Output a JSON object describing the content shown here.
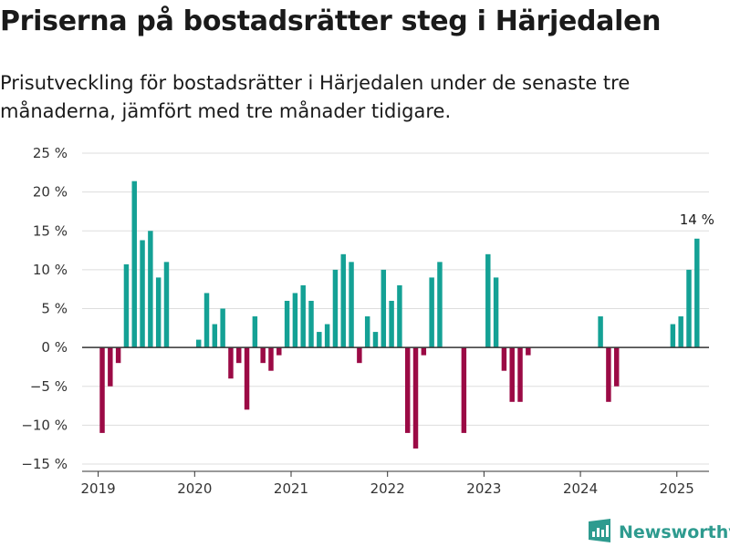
{
  "title": "Priserna på bostadsrätter steg i Härjedalen",
  "subtitle": "Prisutveckling för bostadsrätter i Härjedalen under de senaste tre månaderna, jämfört med tre månader tidigare.",
  "brand": {
    "name": "Newsworthy",
    "icon": "newsworthy-logo-icon",
    "color": "#2e9b8f"
  },
  "colors": {
    "positive": "#14a195",
    "negative": "#9b0a45",
    "grid": "#dddddd",
    "zero_line": "#333333"
  },
  "chart_data": {
    "type": "bar",
    "title": "Priserna på bostadsrätter steg i Härjedalen",
    "subtitle": "Prisutveckling för bostadsrätter i Härjedalen under de senaste tre månaderna, jämfört med tre månader tidigare.",
    "xlabel": "",
    "ylabel": "",
    "ylim": [
      -15,
      25
    ],
    "yticks": [
      25,
      20,
      15,
      10,
      5,
      0,
      -5,
      -10,
      -15
    ],
    "ytick_labels": [
      "25 %",
      "20 %",
      "15 %",
      "10 %",
      "5 %",
      "0 %",
      "−5 %",
      "−10 %",
      "−15 %"
    ],
    "x_range": [
      "2018-11",
      "2025-05"
    ],
    "xticks": [
      "2019",
      "2020",
      "2021",
      "2022",
      "2023",
      "2024",
      "2025"
    ],
    "grid": true,
    "legend": "none",
    "annotations": [
      {
        "period": "2025-03",
        "text": "14 %"
      }
    ],
    "bars": [
      {
        "period": "2019-01",
        "value": -11
      },
      {
        "period": "2019-02",
        "value": -5
      },
      {
        "period": "2019-03",
        "value": -2
      },
      {
        "period": "2019-04",
        "value": 10.7
      },
      {
        "period": "2019-05",
        "value": 21.4
      },
      {
        "period": "2019-06",
        "value": 13.8
      },
      {
        "period": "2019-07",
        "value": 15
      },
      {
        "period": "2019-08",
        "value": 9
      },
      {
        "period": "2019-09",
        "value": 11
      },
      {
        "period": "2020-01",
        "value": 1
      },
      {
        "period": "2020-02",
        "value": 7
      },
      {
        "period": "2020-03",
        "value": 3
      },
      {
        "period": "2020-04",
        "value": 5
      },
      {
        "period": "2020-05",
        "value": -4
      },
      {
        "period": "2020-06",
        "value": -2
      },
      {
        "period": "2020-07",
        "value": -8
      },
      {
        "period": "2020-08",
        "value": 4
      },
      {
        "period": "2020-09",
        "value": -2
      },
      {
        "period": "2020-10",
        "value": -3
      },
      {
        "period": "2020-11",
        "value": -1
      },
      {
        "period": "2020-12",
        "value": 6
      },
      {
        "period": "2021-01",
        "value": 7
      },
      {
        "period": "2021-02",
        "value": 8
      },
      {
        "period": "2021-03",
        "value": 6
      },
      {
        "period": "2021-04",
        "value": 2
      },
      {
        "period": "2021-05",
        "value": 3
      },
      {
        "period": "2021-06",
        "value": 10
      },
      {
        "period": "2021-07",
        "value": 12
      },
      {
        "period": "2021-08",
        "value": 11
      },
      {
        "period": "2021-09",
        "value": -2
      },
      {
        "period": "2021-10",
        "value": 4
      },
      {
        "period": "2021-11",
        "value": 2
      },
      {
        "period": "2021-12",
        "value": 10
      },
      {
        "period": "2022-01",
        "value": 6
      },
      {
        "period": "2022-02",
        "value": 8
      },
      {
        "period": "2022-03",
        "value": -11
      },
      {
        "period": "2022-04",
        "value": -13
      },
      {
        "period": "2022-05",
        "value": -1
      },
      {
        "period": "2022-06",
        "value": 9
      },
      {
        "period": "2022-07",
        "value": 11
      },
      {
        "period": "2022-10",
        "value": -11
      },
      {
        "period": "2023-01",
        "value": 12
      },
      {
        "period": "2023-02",
        "value": 9
      },
      {
        "period": "2023-03",
        "value": -3
      },
      {
        "period": "2023-04",
        "value": -7
      },
      {
        "period": "2023-05",
        "value": -7
      },
      {
        "period": "2023-06",
        "value": -1
      },
      {
        "period": "2024-03",
        "value": 4
      },
      {
        "period": "2024-04",
        "value": -7
      },
      {
        "period": "2024-05",
        "value": -5
      },
      {
        "period": "2024-12",
        "value": 3
      },
      {
        "period": "2025-01",
        "value": 4
      },
      {
        "period": "2025-02",
        "value": 10
      },
      {
        "period": "2025-03",
        "value": 14
      }
    ]
  }
}
